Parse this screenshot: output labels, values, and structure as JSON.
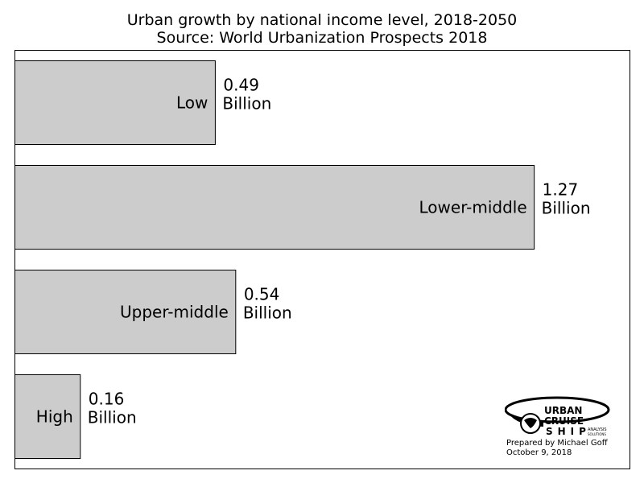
{
  "chart_data": {
    "type": "bar",
    "orientation": "horizontal",
    "title": "Urban growth by national income level, 2018-2050",
    "subtitle": "Source: World Urbanization Prospects 2018",
    "categories": [
      "Low",
      "Lower-middle",
      "Upper-middle",
      "High"
    ],
    "values": [
      0.49,
      1.27,
      0.54,
      0.16
    ],
    "unit": "Billion",
    "xlim": [
      0,
      1.5
    ],
    "grid": false,
    "bar_color": "#cccccc",
    "edge_color": "#000000"
  },
  "logo": {
    "line1": "URBAN",
    "line2": "CRUISE",
    "line3": "SHIP",
    "tag1": "ANALYSIS",
    "tag2": "SOLUTIONS"
  },
  "credit": {
    "line1": "Prepared by Michael Goff",
    "line2": "October 9, 2018"
  }
}
